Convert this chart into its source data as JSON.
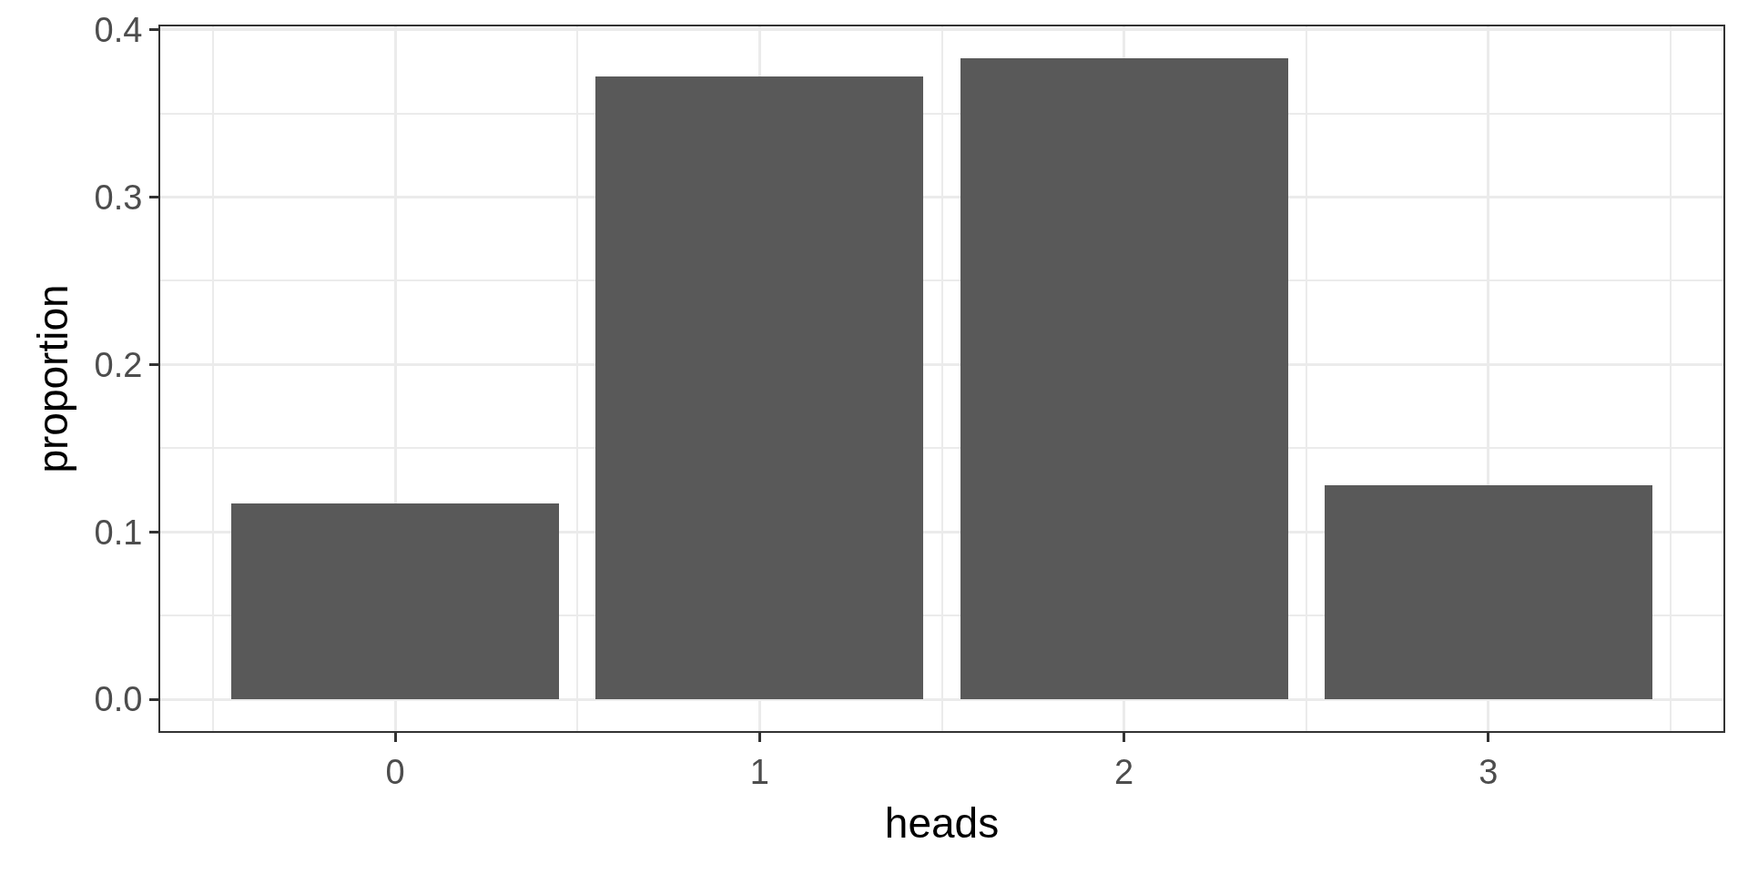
{
  "chart_data": {
    "type": "bar",
    "xlabel": "heads",
    "ylabel": "proportion",
    "x": [
      0,
      1,
      2,
      3
    ],
    "values": [
      0.117,
      0.372,
      0.383,
      0.128
    ],
    "color": "#595959",
    "xlim": [
      -0.645,
      3.645
    ],
    "xticks": [
      0,
      1,
      2,
      3
    ],
    "ylim": [
      -0.019,
      0.402
    ],
    "yticks": [
      {
        "value": 0,
        "label": "0.0"
      },
      0.1,
      0.2,
      0.3,
      0.4
    ],
    "grid": true
  }
}
